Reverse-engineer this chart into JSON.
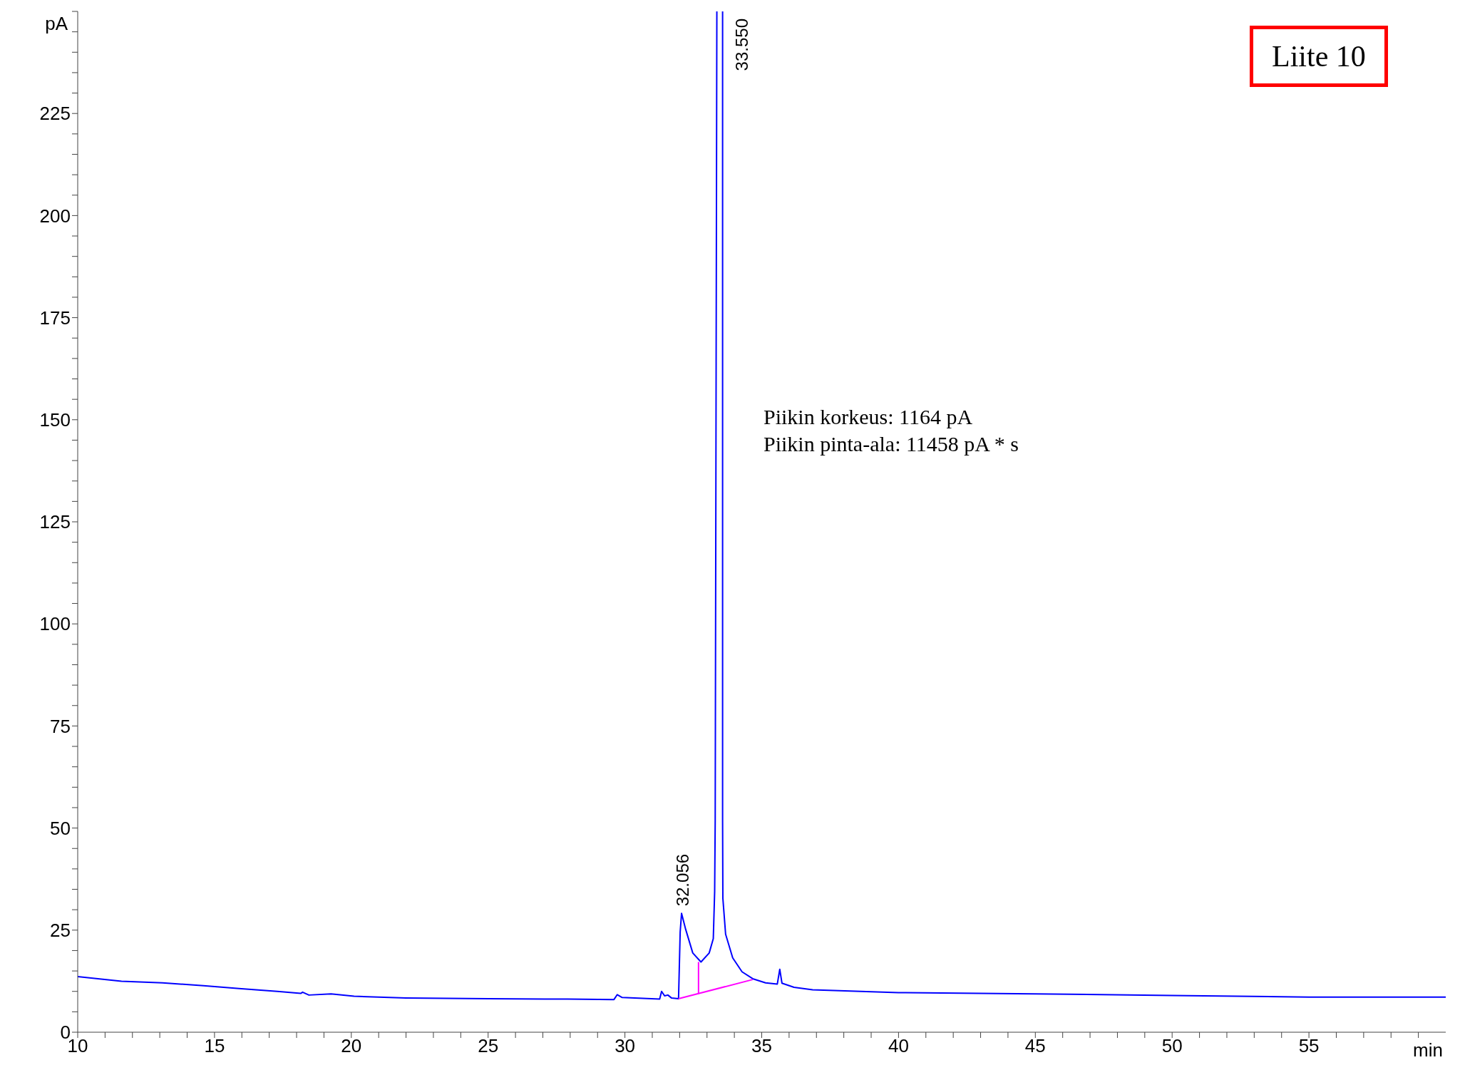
{
  "chart_data": {
    "type": "line",
    "xlabel": "min",
    "ylabel": "pA",
    "xlim": [
      10,
      60
    ],
    "ylim": [
      0,
      250
    ],
    "xticks": [
      10,
      {
        "value": 11,
        "label": null
      },
      {
        "value": 12,
        "label": null
      },
      {
        "value": 13,
        "label": null
      },
      {
        "value": 14,
        "label": null
      },
      15,
      {
        "value": 16,
        "label": null
      },
      {
        "value": 17,
        "label": null
      },
      {
        "value": 18,
        "label": null
      },
      {
        "value": 19,
        "label": null
      },
      20,
      {
        "value": 21,
        "label": null
      },
      {
        "value": 22,
        "label": null
      },
      {
        "value": 23,
        "label": null
      },
      {
        "value": 24,
        "label": null
      },
      25,
      {
        "value": 26,
        "label": null
      },
      {
        "value": 27,
        "label": null
      },
      {
        "value": 28,
        "label": null
      },
      {
        "value": 29,
        "label": null
      },
      30,
      {
        "value": 31,
        "label": null
      },
      {
        "value": 32,
        "label": null
      },
      {
        "value": 33,
        "label": null
      },
      {
        "value": 34,
        "label": null
      },
      35,
      {
        "value": 36,
        "label": null
      },
      {
        "value": 37,
        "label": null
      },
      {
        "value": 38,
        "label": null
      },
      {
        "value": 39,
        "label": null
      },
      40,
      {
        "value": 41,
        "label": null
      },
      {
        "value": 42,
        "label": null
      },
      {
        "value": 43,
        "label": null
      },
      {
        "value": 44,
        "label": null
      },
      45,
      {
        "value": 46,
        "label": null
      },
      {
        "value": 47,
        "label": null
      },
      {
        "value": 48,
        "label": null
      },
      {
        "value": 49,
        "label": null
      },
      50,
      {
        "value": 51,
        "label": null
      },
      {
        "value": 52,
        "label": null
      },
      {
        "value": 53,
        "label": null
      },
      {
        "value": 54,
        "label": null
      },
      55,
      {
        "value": 56,
        "label": null
      },
      {
        "value": 57,
        "label": null
      },
      {
        "value": 58,
        "label": null
      },
      {
        "value": 59,
        "label": null
      }
    ],
    "yticks": [
      0,
      {
        "value": 5,
        "label": null
      },
      {
        "value": 10,
        "label": null
      },
      {
        "value": 15,
        "label": null
      },
      {
        "value": 20,
        "label": null
      },
      25,
      {
        "value": 30,
        "label": null
      },
      {
        "value": 35,
        "label": null
      },
      {
        "value": 40,
        "label": null
      },
      {
        "value": 45,
        "label": null
      },
      50,
      {
        "value": 55,
        "label": null
      },
      {
        "value": 60,
        "label": null
      },
      {
        "value": 65,
        "label": null
      },
      {
        "value": 70,
        "label": null
      },
      75,
      {
        "value": 80,
        "label": null
      },
      {
        "value": 85,
        "label": null
      },
      {
        "value": 90,
        "label": null
      },
      {
        "value": 95,
        "label": null
      },
      100,
      {
        "value": 105,
        "label": null
      },
      {
        "value": 110,
        "label": null
      },
      {
        "value": 115,
        "label": null
      },
      {
        "value": 120,
        "label": null
      },
      125,
      {
        "value": 130,
        "label": null
      },
      {
        "value": 135,
        "label": null
      },
      {
        "value": 140,
        "label": null
      },
      {
        "value": 145,
        "label": null
      },
      150,
      {
        "value": 155,
        "label": null
      },
      {
        "value": 160,
        "label": null
      },
      {
        "value": 165,
        "label": null
      },
      {
        "value": 170,
        "label": null
      },
      175,
      {
        "value": 180,
        "label": null
      },
      {
        "value": 185,
        "label": null
      },
      {
        "value": 190,
        "label": null
      },
      {
        "value": 195,
        "label": null
      },
      200,
      {
        "value": 205,
        "label": null
      },
      {
        "value": 210,
        "label": null
      },
      {
        "value": 215,
        "label": null
      },
      {
        "value": 220,
        "label": null
      },
      225,
      {
        "value": 230,
        "label": null
      },
      {
        "value": 235,
        "label": null
      },
      {
        "value": 240,
        "label": null
      },
      {
        "value": 245,
        "label": null
      },
      {
        "value": 250,
        "label": null
      }
    ],
    "series": [
      {
        "color": "#0000ff",
        "x": [
          10,
          11.6,
          13.1,
          14.6,
          15.9,
          17.3,
          18.15,
          18.22,
          18.45,
          19.26,
          20.1,
          22,
          25,
          27.9,
          29.6,
          29.72,
          29.9,
          31.27,
          31.34,
          31.45,
          31.57,
          31.7,
          31.96,
          32.02,
          32.07,
          32.22,
          32.48,
          32.78,
          33.08,
          33.23,
          33.28,
          33.3,
          33.36,
          33.45,
          33.57,
          33.57,
          33.58,
          33.68,
          33.94,
          34.28,
          34.67,
          35.14,
          35.57,
          35.66,
          35.74,
          36.18,
          36.86,
          40,
          45,
          50,
          55,
          60
        ],
        "values": [
          13.6,
          12.5,
          12.1,
          11.4,
          10.7,
          10,
          9.5,
          9.8,
          9.1,
          9.4,
          8.8,
          8.4,
          8.2,
          8.1,
          8,
          9.2,
          8.5,
          8.1,
          10,
          8.9,
          9.1,
          8.4,
          8.2,
          24.6,
          29.1,
          25.2,
          19.4,
          17.2,
          19.4,
          22.9,
          34.5,
          52,
          250,
          null,
          250,
          52,
          32.8,
          24,
          18.2,
          14.8,
          13.1,
          12.1,
          11.8,
          15.4,
          12,
          11,
          10.4,
          9.7,
          9.4,
          9,
          8.6,
          8.6
        ]
      },
      {
        "color": "#ff00ff",
        "x": [
          31.96,
          34.67
        ],
        "values": [
          8.2,
          12.9
        ]
      },
      {
        "color": "#ff00ff",
        "x": [
          32.69,
          32.69
        ],
        "values": [
          9.35,
          17.2
        ]
      }
    ],
    "annotations": [
      "Liite 10",
      "Piikin korkeus: 1164 pA",
      "Piikin pinta-ala: 11458 pA * s",
      {
        "text": "32.056",
        "x": 32.056,
        "y": 29.1
      },
      {
        "text": "33.550",
        "x": 33.55,
        "y": 250
      }
    ]
  }
}
